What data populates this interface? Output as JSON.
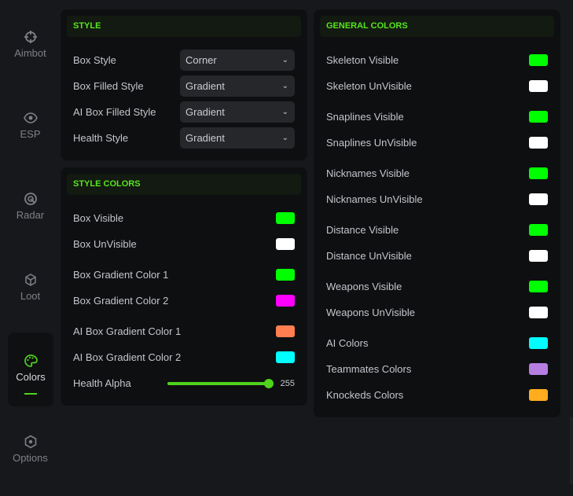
{
  "sidebar": {
    "items": [
      {
        "label": "Aimbot",
        "icon": "crosshair-icon"
      },
      {
        "label": "ESP",
        "icon": "eye-icon"
      },
      {
        "label": "Radar",
        "icon": "radar-icon"
      },
      {
        "label": "Loot",
        "icon": "cube-icon"
      },
      {
        "label": "Colors",
        "icon": "palette-icon",
        "active": true
      },
      {
        "label": "Options",
        "icon": "gear-icon"
      }
    ]
  },
  "style": {
    "title": "STYLE",
    "rows": [
      {
        "label": "Box Style",
        "value": "Corner"
      },
      {
        "label": "Box Filled Style",
        "value": "Gradient"
      },
      {
        "label": "AI Box Filled Style",
        "value": "Gradient"
      },
      {
        "label": "Health Style",
        "value": "Gradient"
      }
    ]
  },
  "style_colors": {
    "title": "STYLE COLORS",
    "rows": [
      {
        "label": "Box Visible",
        "color": "#00ff00"
      },
      {
        "label": "Box UnVisible",
        "color": "#ffffff"
      },
      {
        "label": "Box Gradient Color 1",
        "color": "#00ff00"
      },
      {
        "label": "Box Gradient Color 2",
        "color": "#ff00ff"
      },
      {
        "label": "AI Box Gradient Color 1",
        "color": "#ff7f50"
      },
      {
        "label": "AI Box Gradient Color 2",
        "color": "#00ffff"
      }
    ],
    "health_alpha": {
      "label": "Health Alpha",
      "value": "255",
      "max": 255
    }
  },
  "general_colors": {
    "title": "GENERAL COLORS",
    "rows": [
      {
        "label": "Skeleton Visible",
        "color": "#00ff00"
      },
      {
        "label": "Skeleton UnVisible",
        "color": "#ffffff"
      },
      {
        "label": "Snaplines Visible",
        "color": "#00ff00"
      },
      {
        "label": "Snaplines UnVisible",
        "color": "#ffffff"
      },
      {
        "label": "Nicknames Visible",
        "color": "#00ff00"
      },
      {
        "label": "Nicknames UnVisible",
        "color": "#ffffff"
      },
      {
        "label": "Distance Visible",
        "color": "#00ff00"
      },
      {
        "label": "Distance UnVisible",
        "color": "#ffffff"
      },
      {
        "label": "Weapons Visible",
        "color": "#00ff00"
      },
      {
        "label": "Weapons UnVisible",
        "color": "#ffffff"
      },
      {
        "label": "AI Colors",
        "color": "#00ffff"
      },
      {
        "label": "Teammates Colors",
        "color": "#b57ee0"
      },
      {
        "label": "Knockeds Colors",
        "color": "#ffad1f"
      }
    ]
  },
  "accent": "#4fd31c"
}
